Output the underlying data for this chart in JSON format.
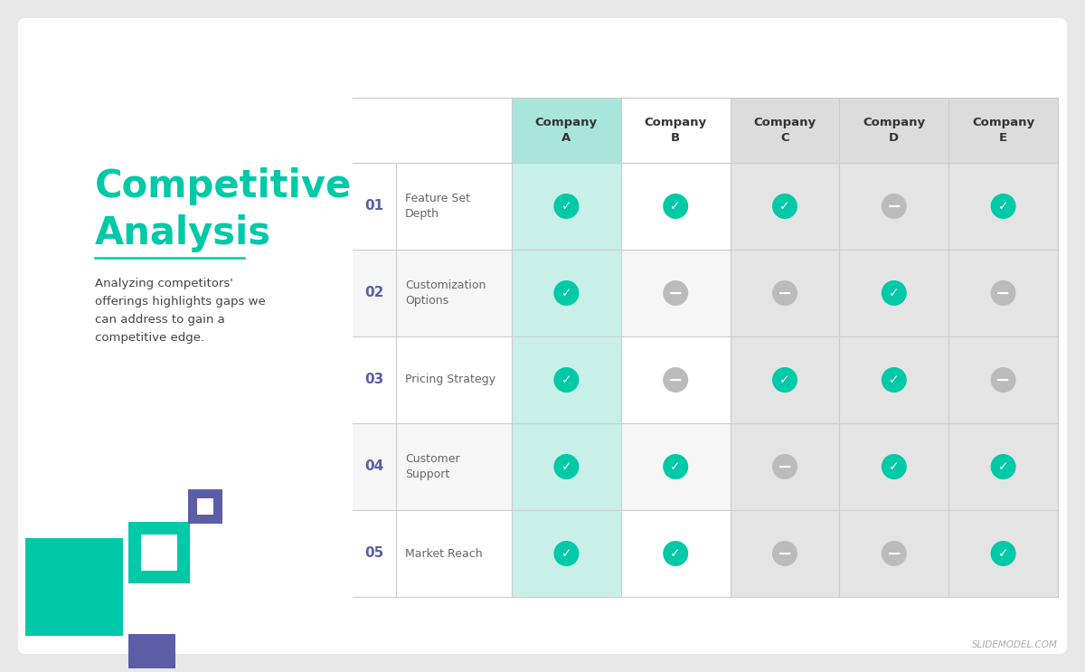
{
  "title_line1": "Competitive",
  "title_line2": "Analysis",
  "title_color": "#00C9A7",
  "subtitle_color": "#444444",
  "subtitle_text": "Analyzing competitors'\nofferings highlights gaps we\ncan address to gain a\ncompetitive edge.",
  "number_color": "#5B5EA6",
  "bg_color": "#FFFFFF",
  "outer_bg": "#E8E8E8",
  "companies": [
    "Company\nA",
    "Company\nB",
    "Company\nC",
    "Company\nD",
    "Company\nE"
  ],
  "company_A_bg": "#A8E6DB",
  "company_A_row_bg": "#C8F0E8",
  "company_header_bg_gray": "#DCDCDC",
  "company_row_bg_gray": "#E4E4E4",
  "row_labels": [
    "01",
    "02",
    "03",
    "04",
    "05"
  ],
  "row_features": [
    "Feature Set\nDepth",
    "Customization\nOptions",
    "Pricing Strategy",
    "Customer\nSupport",
    "Market Reach"
  ],
  "matrix": [
    [
      1,
      1,
      1,
      0,
      1
    ],
    [
      1,
      0,
      0,
      1,
      0
    ],
    [
      1,
      0,
      1,
      1,
      0
    ],
    [
      1,
      1,
      0,
      1,
      1
    ],
    [
      1,
      1,
      0,
      0,
      1
    ]
  ],
  "check_color": "#00C9A7",
  "dash_color": "#BBBBBB",
  "teal_color": "#00C9A7",
  "purple_color": "#5B5EA6",
  "divider_color": "#00C9A7",
  "row_divider_color": "#CCCCCC",
  "slide_border_color": "#CCCCCC",
  "watermark_color": "#AAAAAA",
  "watermark_text": "SLIDEMODEL.COM",
  "feature_text_color": "#666666",
  "header_text_color": "#333333"
}
